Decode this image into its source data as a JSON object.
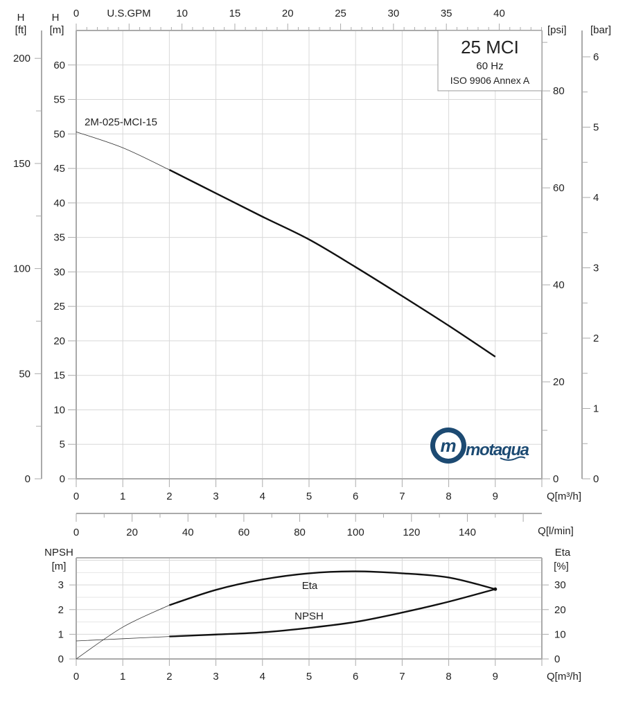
{
  "chart_data": [
    {
      "type": "line",
      "title_box": {
        "title": "25 MCI",
        "frequency": "60 Hz",
        "standard": "ISO 9906 Annex A"
      },
      "brand": "Motaqua",
      "x": [
        0,
        1,
        2,
        3,
        4,
        5,
        6,
        7,
        8,
        9
      ],
      "series": [
        {
          "name": "2M-025-MCI-15",
          "values": [
            50.3,
            48.0,
            44.8,
            41.4,
            38.0,
            34.7,
            30.7,
            26.5,
            22.2,
            17.7
          ]
        }
      ],
      "operating_range_start": 2,
      "xlabel": "Q[m³/h]",
      "xlim": [
        0,
        10
      ],
      "xticks": [
        0,
        1,
        2,
        3,
        4,
        5,
        6,
        7,
        8,
        9
      ],
      "ylim": [
        0,
        65
      ],
      "yticks": [
        0,
        5,
        10,
        15,
        20,
        25,
        30,
        35,
        40,
        45,
        50,
        55,
        60
      ],
      "axes": {
        "h_m": {
          "label": "H",
          "unit": "[m]"
        },
        "h_ft": {
          "label": "H",
          "unit": "[ft]",
          "ticks": [
            0,
            50,
            100,
            150,
            200
          ]
        },
        "psi": {
          "unit": "[psi]",
          "ticks": [
            0,
            20,
            40,
            60,
            80
          ]
        },
        "bar": {
          "unit": "[bar]",
          "ticks": [
            0,
            1,
            2,
            3,
            4,
            5,
            6
          ]
        },
        "gpm": {
          "label": "U.S.GPM",
          "ticks": [
            0,
            10,
            15,
            20,
            25,
            30,
            35,
            40
          ]
        },
        "lmin": {
          "label": "Q[l/min]",
          "ticks": [
            0,
            20,
            40,
            60,
            80,
            100,
            120,
            140
          ]
        }
      },
      "grid": true
    },
    {
      "type": "line",
      "x": [
        0,
        1,
        2,
        3,
        4,
        5,
        6,
        7,
        8,
        9
      ],
      "series": [
        {
          "name": "Eta",
          "axis": "right",
          "values": [
            0,
            12.9,
            21.8,
            28.0,
            32.2,
            34.7,
            35.5,
            34.7,
            33.0,
            28.3
          ]
        },
        {
          "name": "NPSH",
          "axis": "left",
          "values": [
            0.73,
            0.82,
            0.91,
            0.99,
            1.08,
            1.26,
            1.5,
            1.88,
            2.32,
            2.83
          ]
        }
      ],
      "operating_range_start": 2,
      "xlabel": "Q[m³/h]",
      "xlim": [
        0,
        10
      ],
      "xticks": [
        0,
        1,
        2,
        3,
        4,
        5,
        6,
        7,
        8,
        9
      ],
      "ylabel_left": {
        "label": "NPSH",
        "unit": "[m]"
      },
      "ylabel_right": {
        "label": "Eta",
        "unit": "[%]"
      },
      "ylim_left": [
        0,
        4.1
      ],
      "yticks_left": [
        0,
        1,
        2,
        3
      ],
      "ylim_right": [
        0,
        41
      ],
      "yticks_right": [
        0,
        10,
        20,
        30
      ],
      "grid": true
    }
  ]
}
